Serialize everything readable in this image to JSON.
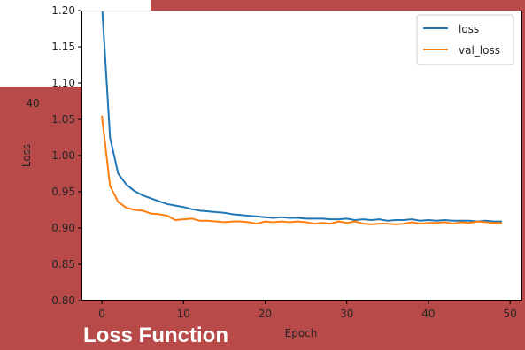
{
  "caption": "Loss Function",
  "chart_data": {
    "type": "line",
    "title": "",
    "xlabel": "Epoch",
    "ylabel": "Loss",
    "xlim": [
      -2.5,
      51.5
    ],
    "ylim": [
      0.8,
      1.2
    ],
    "xticks": [
      0,
      10,
      20,
      30,
      40,
      50
    ],
    "yticks": [
      0.8,
      0.85,
      0.9,
      0.95,
      1.0,
      1.05,
      1.1,
      1.15,
      1.2
    ],
    "ytick_labels": [
      "0.80",
      "0.85",
      "0.90",
      "0.95",
      "1.00",
      "1.05",
      "1.10",
      "1.15",
      "1.20"
    ],
    "overlay_tick_label": "40",
    "legend_position": "upper-right",
    "grid": false,
    "series": [
      {
        "name": "loss",
        "color": "#1f77b4",
        "x": [
          0,
          1,
          2,
          3,
          4,
          5,
          6,
          7,
          8,
          9,
          10,
          11,
          12,
          13,
          14,
          15,
          16,
          17,
          18,
          19,
          20,
          21,
          22,
          23,
          24,
          25,
          26,
          27,
          28,
          29,
          30,
          31,
          32,
          33,
          34,
          35,
          36,
          37,
          38,
          39,
          40,
          41,
          42,
          43,
          44,
          45,
          46,
          47,
          48,
          49
        ],
        "values": [
          1.21,
          1.025,
          0.975,
          0.96,
          0.951,
          0.945,
          0.941,
          0.937,
          0.933,
          0.931,
          0.929,
          0.926,
          0.924,
          0.923,
          0.922,
          0.921,
          0.919,
          0.918,
          0.917,
          0.916,
          0.915,
          0.914,
          0.915,
          0.914,
          0.914,
          0.913,
          0.913,
          0.913,
          0.912,
          0.912,
          0.913,
          0.911,
          0.912,
          0.911,
          0.912,
          0.91,
          0.911,
          0.911,
          0.912,
          0.91,
          0.911,
          0.91,
          0.911,
          0.91,
          0.91,
          0.91,
          0.909,
          0.91,
          0.909,
          0.909
        ]
      },
      {
        "name": "val_loss",
        "color": "#ff7f0e",
        "x": [
          0,
          1,
          2,
          3,
          4,
          5,
          6,
          7,
          8,
          9,
          10,
          11,
          12,
          13,
          14,
          15,
          16,
          17,
          18,
          19,
          20,
          21,
          22,
          23,
          24,
          25,
          26,
          27,
          28,
          29,
          30,
          31,
          32,
          33,
          34,
          35,
          36,
          37,
          38,
          39,
          40,
          41,
          42,
          43,
          44,
          45,
          46,
          47,
          48,
          49
        ],
        "values": [
          1.055,
          0.958,
          0.936,
          0.928,
          0.925,
          0.924,
          0.92,
          0.919,
          0.917,
          0.911,
          0.912,
          0.913,
          0.91,
          0.91,
          0.909,
          0.908,
          0.909,
          0.909,
          0.908,
          0.906,
          0.909,
          0.908,
          0.909,
          0.908,
          0.909,
          0.908,
          0.906,
          0.907,
          0.906,
          0.909,
          0.907,
          0.909,
          0.906,
          0.905,
          0.906,
          0.906,
          0.905,
          0.906,
          0.908,
          0.906,
          0.907,
          0.907,
          0.908,
          0.906,
          0.908,
          0.907,
          0.909,
          0.908,
          0.907,
          0.907
        ]
      }
    ]
  }
}
